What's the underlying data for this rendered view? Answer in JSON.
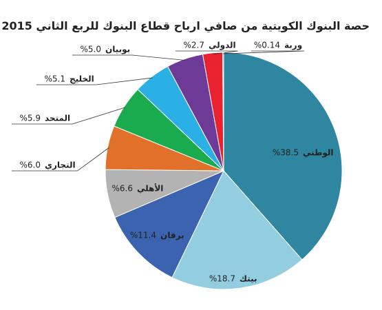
{
  "chart_data": {
    "type": "pie",
    "title": "حصة البنوك الكويتية من صافي ارباح قطاع البنوك للربع الثاني 2015",
    "categories": [
      "الوطني",
      "بيتك",
      "برقان",
      "الأهلي",
      "التجاري",
      "المتحد",
      "الخليج",
      "بوبيان",
      "الدولي",
      "وربة"
    ],
    "values": [
      38.5,
      18.7,
      11.4,
      6.6,
      6.0,
      5.9,
      5.1,
      5.0,
      2.7,
      0.14
    ],
    "value_labels": [
      "%38.5",
      "%18.7",
      "%11.4",
      "%6.6",
      "%6.0",
      "%5.9",
      "%5.1",
      "%5.0",
      "%2.7",
      "%0.14"
    ],
    "colors": [
      "#2e86a0",
      "#93cde0",
      "#3c63b0",
      "#b3b3b3",
      "#e0702a",
      "#1aab4f",
      "#2bb0e6",
      "#6e3a98",
      "#e8222e",
      "#999999"
    ]
  }
}
